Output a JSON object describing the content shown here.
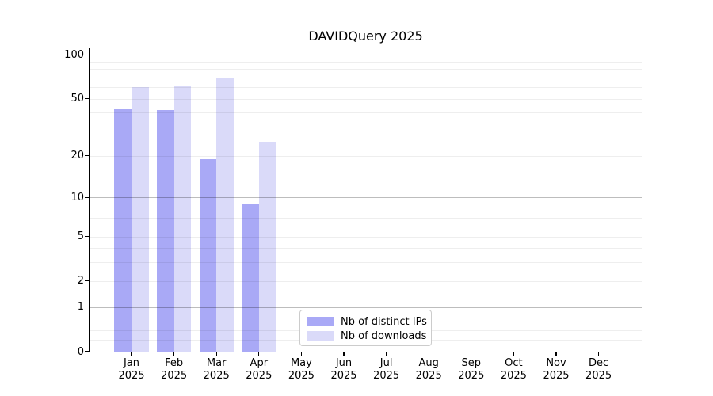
{
  "title": "DAVIDQuery 2025",
  "chart_data": {
    "type": "bar",
    "title": "DAVIDQuery 2025",
    "categories": [
      "Jan",
      "Feb",
      "Mar",
      "Apr",
      "May",
      "Jun",
      "Jul",
      "Aug",
      "Sep",
      "Oct",
      "Nov",
      "Dec"
    ],
    "x_year_label": "2025",
    "series": [
      {
        "name": "Nb of distinct IPs",
        "color": "#a9a9f6",
        "values": [
          43,
          42,
          19,
          9,
          0,
          0,
          0,
          0,
          0,
          0,
          0,
          0
        ]
      },
      {
        "name": "Nb of downloads",
        "color": "#dadaf9",
        "values": [
          60,
          62,
          70,
          25,
          0,
          0,
          0,
          0,
          0,
          0,
          0,
          0
        ]
      }
    ],
    "y_scale": "log1p",
    "y_ticks": [
      0,
      1,
      2,
      5,
      10,
      20,
      50,
      100
    ],
    "y_major_gridlines": [
      1,
      10,
      100
    ],
    "y_minor_gridlines": [
      0.2,
      0.4,
      0.6,
      0.8,
      2,
      3,
      4,
      5,
      6,
      7,
      8,
      9,
      20,
      30,
      40,
      50,
      60,
      70,
      80,
      90
    ],
    "ylim": [
      0,
      111
    ],
    "grid": "both",
    "legend_position": "lower center"
  },
  "legend": {
    "entries": [
      "Nb of distinct IPs",
      "Nb of downloads"
    ]
  }
}
